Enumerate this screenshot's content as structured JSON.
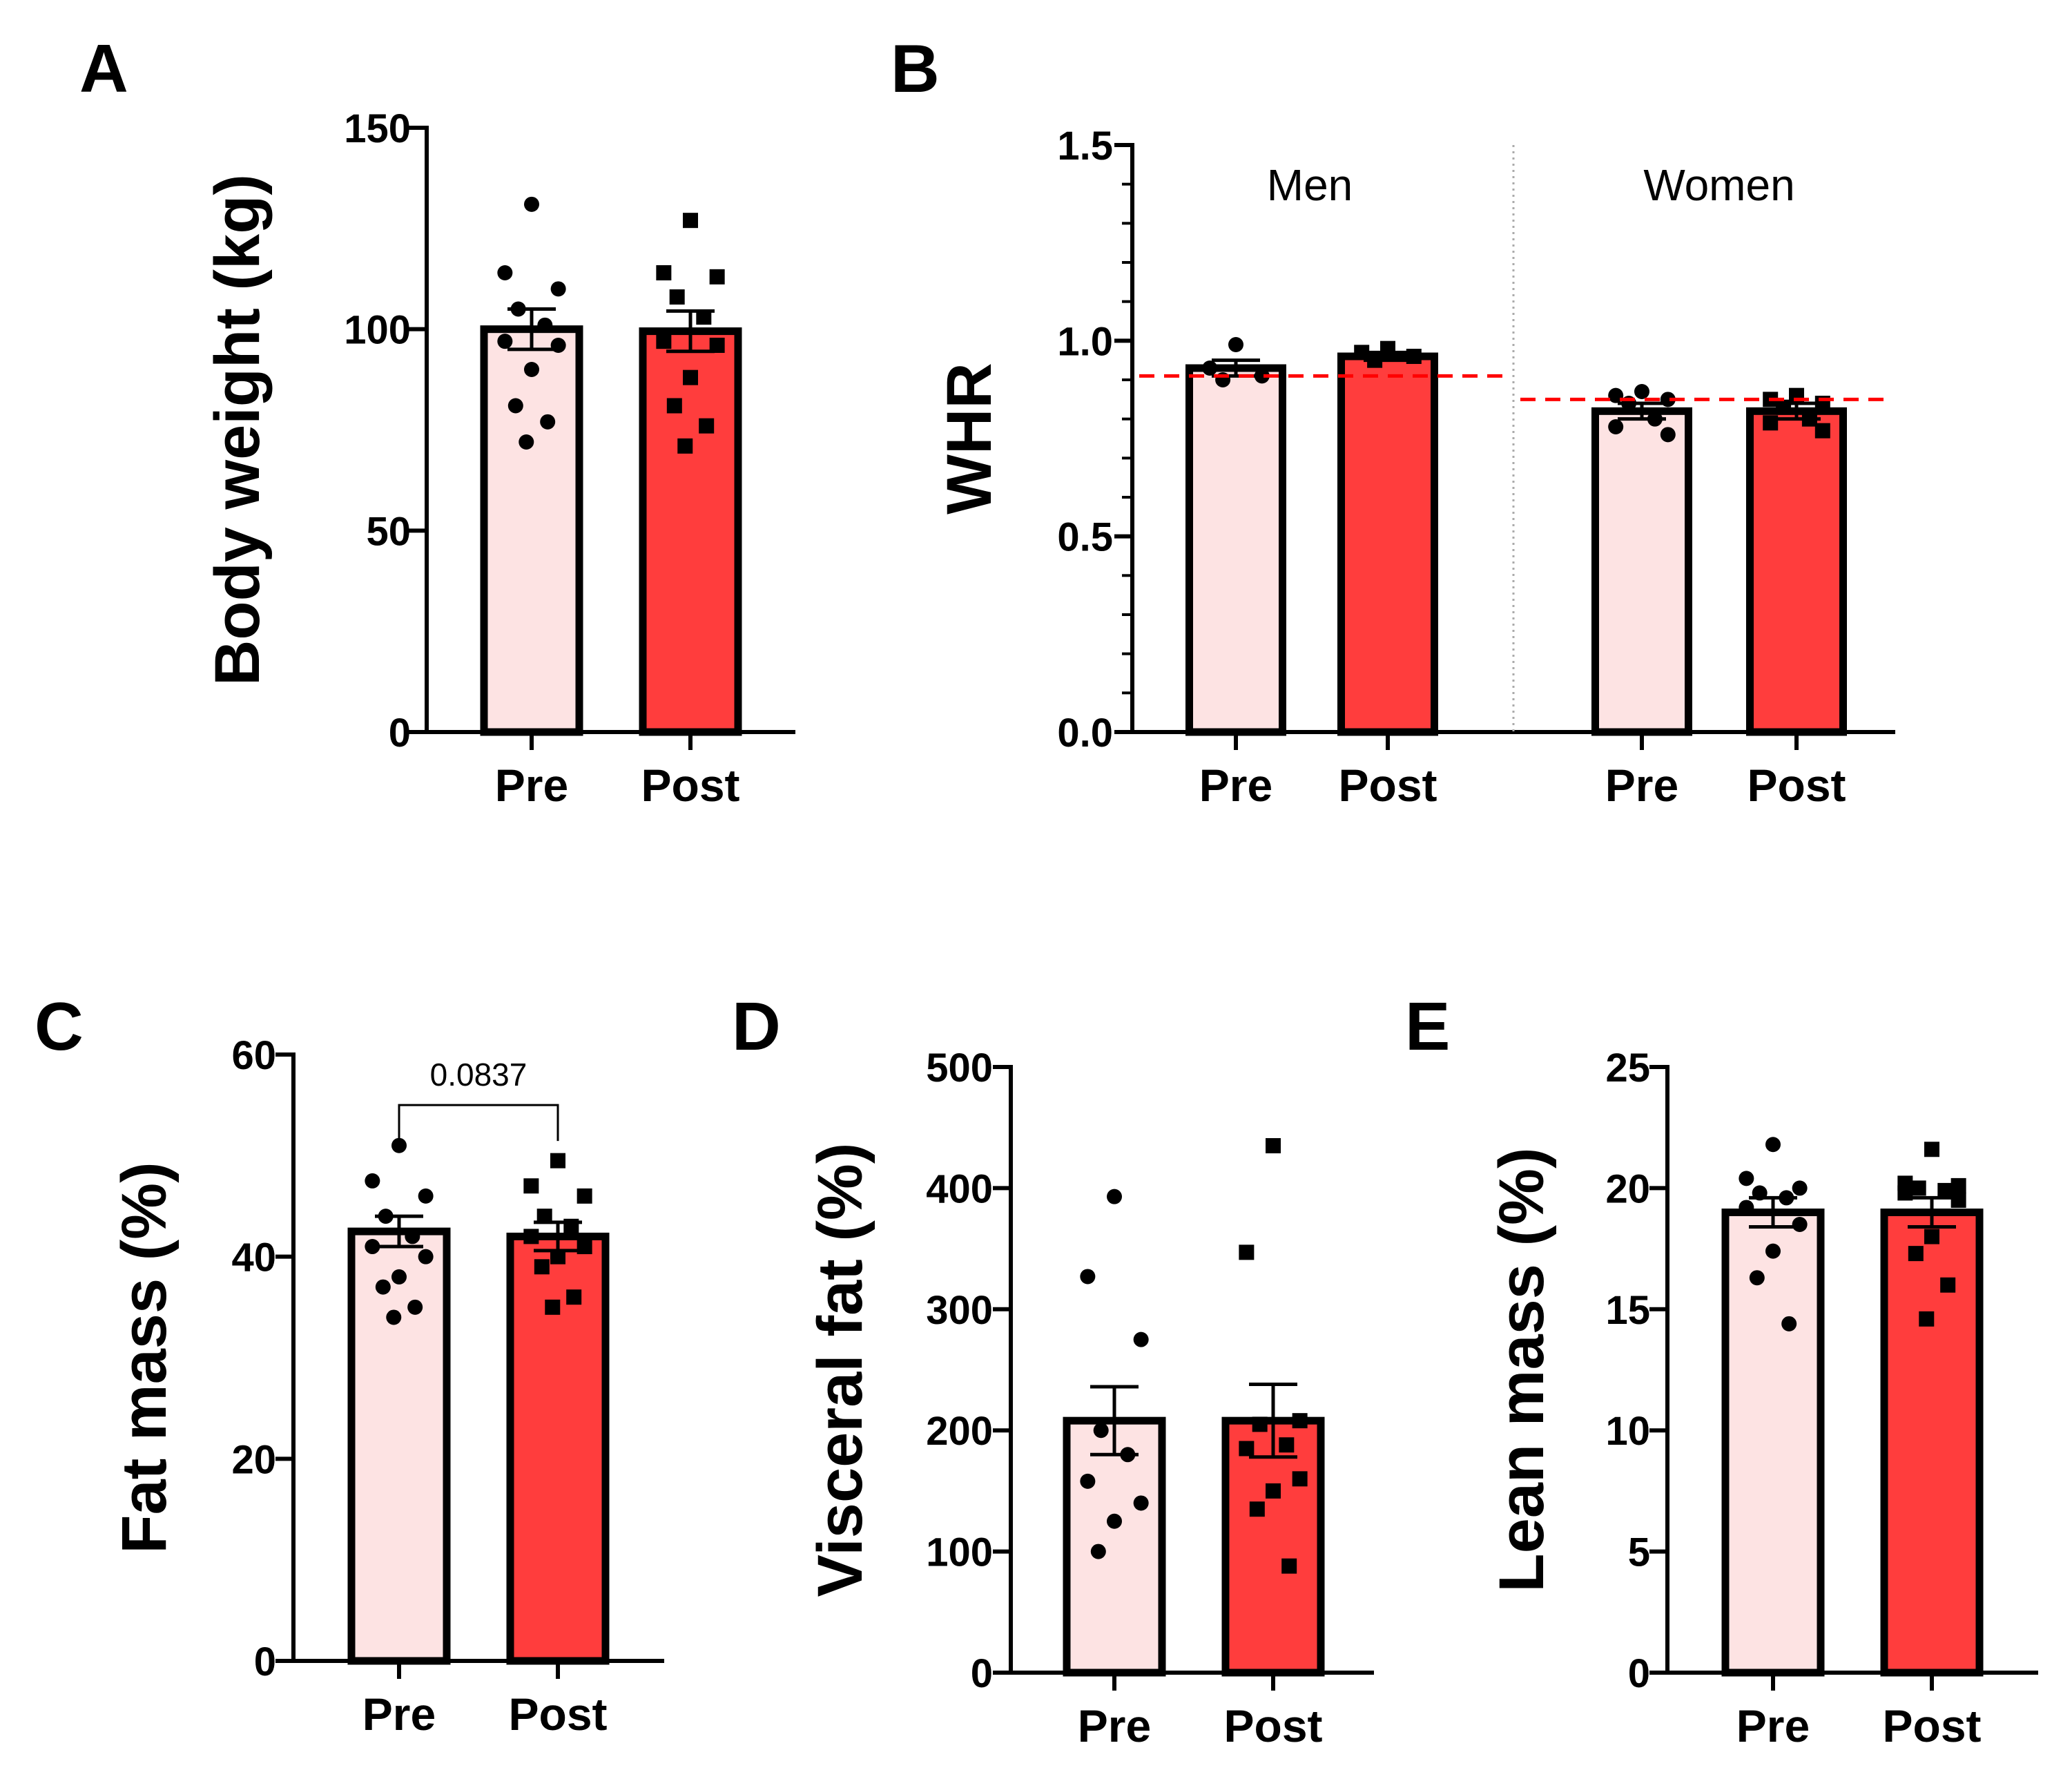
{
  "colors": {
    "pre_fill": "#FDE3E3",
    "post_fill": "#FF3D3D",
    "outline": "#000000",
    "reference_line": "#FF0000",
    "separator": "#AAAAAA"
  },
  "chart_data": [
    {
      "id": "A",
      "panel_label": "A",
      "type": "bar",
      "ylabel": "Body weight (kg)",
      "ylim": [
        0,
        150
      ],
      "yticks": [
        0,
        50,
        100,
        150
      ],
      "ytick_labels": [
        "0",
        "50",
        "100",
        "150"
      ],
      "categories": [
        "Pre",
        "Post"
      ],
      "values": [
        100,
        99.5
      ],
      "sem": [
        5,
        5
      ],
      "points": [
        [
          131,
          114,
          110,
          105,
          101,
          97,
          96,
          90,
          81,
          77,
          72
        ],
        [
          127,
          114,
          113,
          108,
          103,
          97,
          96,
          88,
          81,
          76,
          71
        ]
      ],
      "markers": [
        "circle",
        "square"
      ]
    },
    {
      "id": "B",
      "panel_label": "B",
      "type": "bar",
      "ylabel": "WHR",
      "ylim": [
        0,
        1.5
      ],
      "yticks": [
        0,
        0.5,
        1.0,
        1.5
      ],
      "ytick_labels": [
        "0.0",
        "0.5",
        "1.0",
        "1.5"
      ],
      "groups": [
        {
          "label": "Men",
          "categories": [
            "Pre",
            "Post"
          ],
          "values": [
            0.93,
            0.96
          ],
          "sem": [
            0.02,
            0.01
          ],
          "points": [
            [
              0.99,
              0.93,
              0.91,
              0.9
            ],
            [
              0.98,
              0.97,
              0.96,
              0.95
            ]
          ],
          "reference_line": 0.91
        },
        {
          "label": "Women",
          "categories": [
            "Pre",
            "Post"
          ],
          "values": [
            0.82,
            0.82
          ],
          "sem": [
            0.02,
            0.02
          ],
          "points": [
            [
              0.87,
              0.86,
              0.85,
              0.84,
              0.8,
              0.78,
              0.76
            ],
            [
              0.86,
              0.85,
              0.84,
              0.83,
              0.8,
              0.79,
              0.77
            ]
          ],
          "reference_line": 0.85
        }
      ],
      "markers": [
        "circle",
        "square"
      ]
    },
    {
      "id": "C",
      "panel_label": "C",
      "type": "bar",
      "ylabel": "Fat mass (%)",
      "ylim": [
        0,
        60
      ],
      "yticks": [
        0,
        20,
        40,
        60
      ],
      "ytick_labels": [
        "0",
        "20",
        "40",
        "60"
      ],
      "categories": [
        "Pre",
        "Post"
      ],
      "values": [
        42.5,
        42
      ],
      "sem": [
        1.5,
        1.4
      ],
      "points": [
        [
          51,
          47.5,
          46,
          44,
          42,
          41,
          40,
          38,
          37,
          35,
          34
        ],
        [
          49.5,
          47,
          46,
          44,
          43,
          42,
          41,
          40,
          39,
          36,
          35
        ]
      ],
      "markers": [
        "circle",
        "square"
      ],
      "annotation": {
        "text": "0.0837",
        "y": 58.5
      }
    },
    {
      "id": "D",
      "panel_label": "D",
      "type": "bar",
      "ylabel": "Visceral fat (%)",
      "ylim": [
        0,
        500
      ],
      "yticks": [
        0,
        100,
        200,
        300,
        400,
        500
      ],
      "ytick_labels": [
        "0",
        "100",
        "200",
        "300",
        "400",
        "500"
      ],
      "categories": [
        "Pre",
        "Post"
      ],
      "values": [
        208,
        208
      ],
      "sem": [
        28,
        30
      ],
      "points": [
        [
          393,
          327,
          275,
          200,
          180,
          158,
          140,
          125,
          100
        ],
        [
          435,
          347,
          208,
          205,
          188,
          185,
          160,
          150,
          135,
          88
        ]
      ],
      "markers": [
        "circle",
        "square"
      ]
    },
    {
      "id": "E",
      "panel_label": "E",
      "type": "bar",
      "ylabel": "Lean mass (%)",
      "ylim": [
        0,
        25
      ],
      "yticks": [
        0,
        5,
        10,
        15,
        20,
        25
      ],
      "ytick_labels": [
        "0",
        "5",
        "10",
        "15",
        "20",
        "25"
      ],
      "categories": [
        "Pre",
        "Post"
      ],
      "values": [
        19,
        19
      ],
      "sem": [
        0.6,
        0.6
      ],
      "points": [
        [
          21.8,
          20.4,
          20.0,
          19.8,
          19.6,
          19.2,
          18.5,
          17.4,
          16.3,
          14.4
        ],
        [
          21.6,
          20.2,
          20.1,
          20.0,
          19.9,
          19.8,
          19.5,
          18.0,
          17.3,
          16.0,
          14.6
        ]
      ],
      "markers": [
        "circle",
        "square"
      ]
    }
  ]
}
